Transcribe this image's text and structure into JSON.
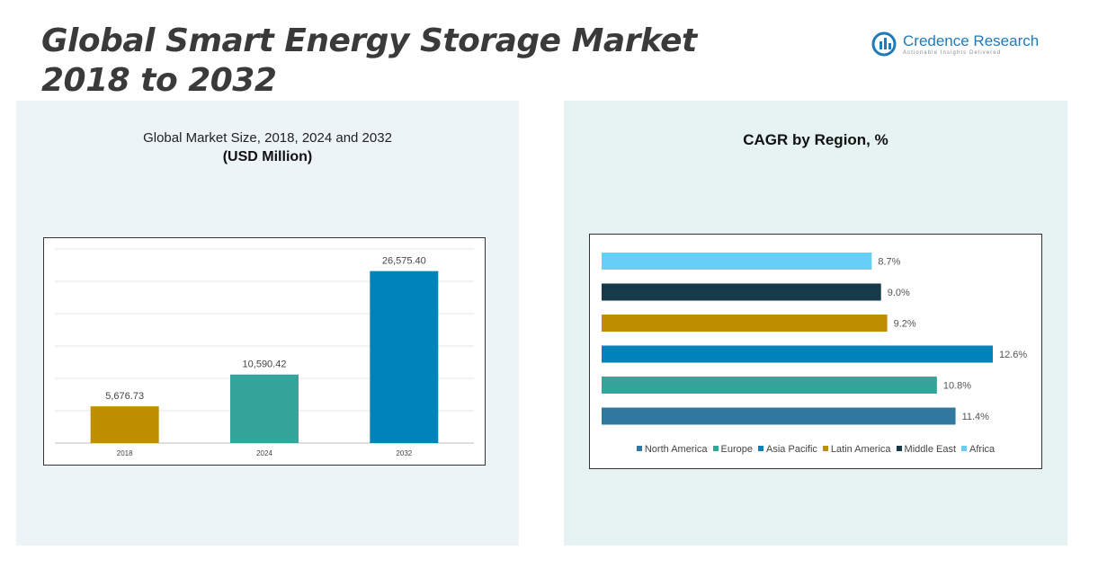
{
  "page": {
    "title_line1": "Global Smart Energy Storage Market",
    "title_line2": "2018 to 2032"
  },
  "logo": {
    "name": "Credence Research",
    "tagline": "Actionable Insights Delivered",
    "color": "#1f7ab8"
  },
  "left_chart": {
    "title": "Global Market Size, 2018, 2024 and 2032",
    "unit": "(USD Million)"
  },
  "right_chart": {
    "title": "CAGR by Region, %"
  },
  "chart_data": [
    {
      "type": "bar",
      "title": "Global Market Size, 2018, 2024 and 2032",
      "subtitle": "(USD Million)",
      "categories": [
        "2018",
        "2024",
        "2032"
      ],
      "values": [
        5676.73,
        10590.42,
        26575.4
      ],
      "data_labels": [
        "5,676.73",
        "10,590.42",
        "26,575.40"
      ],
      "colors": [
        "#bf8f00",
        "#33a59a",
        "#0083b8"
      ],
      "ylim": [
        0,
        30000
      ],
      "grid": true
    },
    {
      "type": "bar",
      "orientation": "horizontal",
      "title": "CAGR by Region, %",
      "categories": [
        "North America",
        "Europe",
        "Asia Pacific",
        "Latin America",
        "Middle East",
        "Africa"
      ],
      "values": [
        11.4,
        10.8,
        12.6,
        9.2,
        9.0,
        8.7
      ],
      "data_labels": [
        "11.4%",
        "10.8%",
        "12.6%",
        "9.2%",
        "9.0%",
        "8.7%"
      ],
      "colors": [
        "#31789f",
        "#33a59a",
        "#0083b8",
        "#bf8f00",
        "#173a4a",
        "#65cff5"
      ],
      "xlim": [
        0,
        12.6
      ],
      "legend": "bottom",
      "grid": false
    }
  ]
}
